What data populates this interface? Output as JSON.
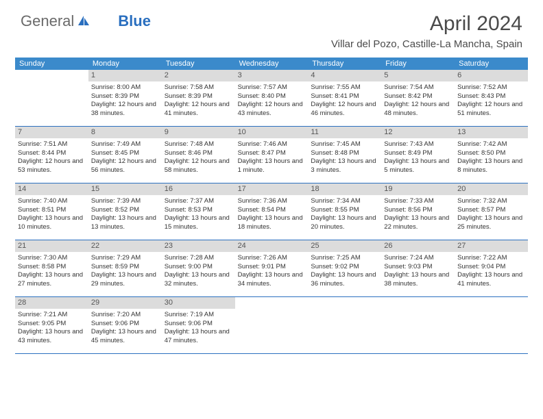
{
  "logo": {
    "text_general": "General",
    "text_blue": "Blue"
  },
  "title": "April 2024",
  "subtitle": "Villar del Pozo, Castille-La Mancha, Spain",
  "colors": {
    "header_bg": "#3b8acb",
    "header_text": "#ffffff",
    "dayBar_bg": "#dcdcdc",
    "dayBar_text": "#555555",
    "border": "#2a6fbf",
    "body_text": "#333333",
    "title_text": "#4a4a4a",
    "logo_gray": "#6a6a6a",
    "logo_blue": "#2a6fbf",
    "background": "#ffffff"
  },
  "dayNames": [
    "Sunday",
    "Monday",
    "Tuesday",
    "Wednesday",
    "Thursday",
    "Friday",
    "Saturday"
  ],
  "weeks": [
    [
      null,
      {
        "n": "1",
        "sr": "8:00 AM",
        "ss": "8:39 PM",
        "dl": "12 hours and 38 minutes."
      },
      {
        "n": "2",
        "sr": "7:58 AM",
        "ss": "8:39 PM",
        "dl": "12 hours and 41 minutes."
      },
      {
        "n": "3",
        "sr": "7:57 AM",
        "ss": "8:40 PM",
        "dl": "12 hours and 43 minutes."
      },
      {
        "n": "4",
        "sr": "7:55 AM",
        "ss": "8:41 PM",
        "dl": "12 hours and 46 minutes."
      },
      {
        "n": "5",
        "sr": "7:54 AM",
        "ss": "8:42 PM",
        "dl": "12 hours and 48 minutes."
      },
      {
        "n": "6",
        "sr": "7:52 AM",
        "ss": "8:43 PM",
        "dl": "12 hours and 51 minutes."
      }
    ],
    [
      {
        "n": "7",
        "sr": "7:51 AM",
        "ss": "8:44 PM",
        "dl": "12 hours and 53 minutes."
      },
      {
        "n": "8",
        "sr": "7:49 AM",
        "ss": "8:45 PM",
        "dl": "12 hours and 56 minutes."
      },
      {
        "n": "9",
        "sr": "7:48 AM",
        "ss": "8:46 PM",
        "dl": "12 hours and 58 minutes."
      },
      {
        "n": "10",
        "sr": "7:46 AM",
        "ss": "8:47 PM",
        "dl": "13 hours and 1 minute."
      },
      {
        "n": "11",
        "sr": "7:45 AM",
        "ss": "8:48 PM",
        "dl": "13 hours and 3 minutes."
      },
      {
        "n": "12",
        "sr": "7:43 AM",
        "ss": "8:49 PM",
        "dl": "13 hours and 5 minutes."
      },
      {
        "n": "13",
        "sr": "7:42 AM",
        "ss": "8:50 PM",
        "dl": "13 hours and 8 minutes."
      }
    ],
    [
      {
        "n": "14",
        "sr": "7:40 AM",
        "ss": "8:51 PM",
        "dl": "13 hours and 10 minutes."
      },
      {
        "n": "15",
        "sr": "7:39 AM",
        "ss": "8:52 PM",
        "dl": "13 hours and 13 minutes."
      },
      {
        "n": "16",
        "sr": "7:37 AM",
        "ss": "8:53 PM",
        "dl": "13 hours and 15 minutes."
      },
      {
        "n": "17",
        "sr": "7:36 AM",
        "ss": "8:54 PM",
        "dl": "13 hours and 18 minutes."
      },
      {
        "n": "18",
        "sr": "7:34 AM",
        "ss": "8:55 PM",
        "dl": "13 hours and 20 minutes."
      },
      {
        "n": "19",
        "sr": "7:33 AM",
        "ss": "8:56 PM",
        "dl": "13 hours and 22 minutes."
      },
      {
        "n": "20",
        "sr": "7:32 AM",
        "ss": "8:57 PM",
        "dl": "13 hours and 25 minutes."
      }
    ],
    [
      {
        "n": "21",
        "sr": "7:30 AM",
        "ss": "8:58 PM",
        "dl": "13 hours and 27 minutes."
      },
      {
        "n": "22",
        "sr": "7:29 AM",
        "ss": "8:59 PM",
        "dl": "13 hours and 29 minutes."
      },
      {
        "n": "23",
        "sr": "7:28 AM",
        "ss": "9:00 PM",
        "dl": "13 hours and 32 minutes."
      },
      {
        "n": "24",
        "sr": "7:26 AM",
        "ss": "9:01 PM",
        "dl": "13 hours and 34 minutes."
      },
      {
        "n": "25",
        "sr": "7:25 AM",
        "ss": "9:02 PM",
        "dl": "13 hours and 36 minutes."
      },
      {
        "n": "26",
        "sr": "7:24 AM",
        "ss": "9:03 PM",
        "dl": "13 hours and 38 minutes."
      },
      {
        "n": "27",
        "sr": "7:22 AM",
        "ss": "9:04 PM",
        "dl": "13 hours and 41 minutes."
      }
    ],
    [
      {
        "n": "28",
        "sr": "7:21 AM",
        "ss": "9:05 PM",
        "dl": "13 hours and 43 minutes."
      },
      {
        "n": "29",
        "sr": "7:20 AM",
        "ss": "9:06 PM",
        "dl": "13 hours and 45 minutes."
      },
      {
        "n": "30",
        "sr": "7:19 AM",
        "ss": "9:06 PM",
        "dl": "13 hours and 47 minutes."
      },
      null,
      null,
      null,
      null
    ]
  ],
  "labels": {
    "sunrise": "Sunrise:",
    "sunset": "Sunset:",
    "daylight": "Daylight:"
  }
}
